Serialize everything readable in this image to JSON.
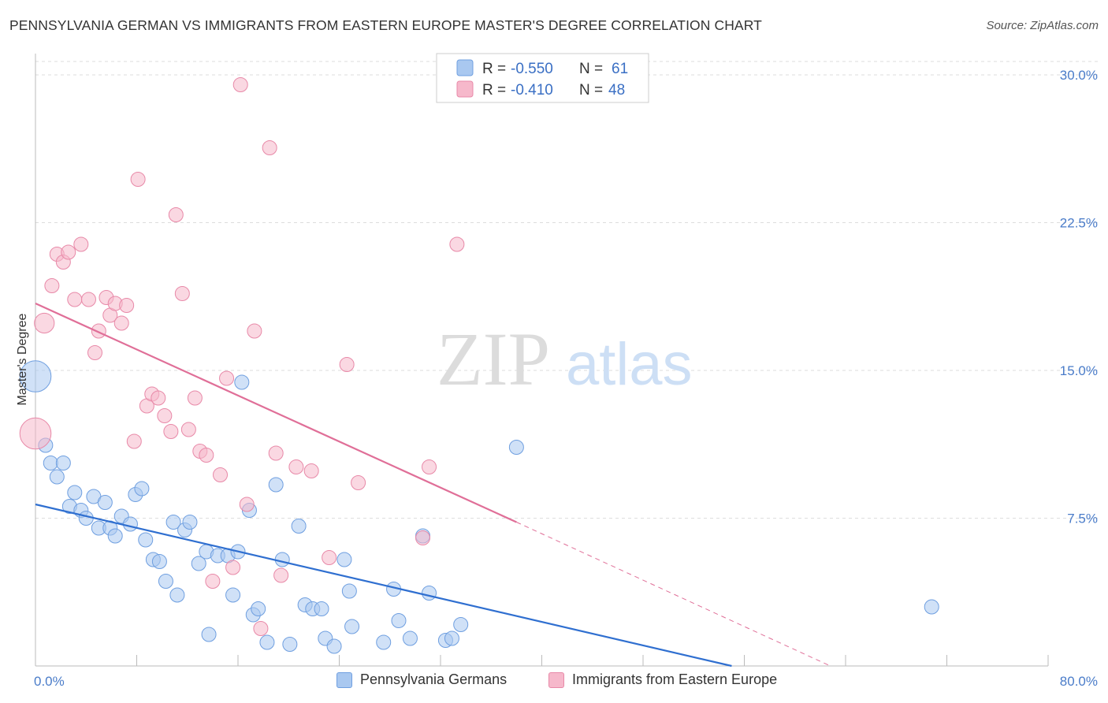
{
  "title": "PENNSYLVANIA GERMAN VS IMMIGRANTS FROM EASTERN EUROPE MASTER'S DEGREE CORRELATION CHART",
  "source": "Source: ZipAtlas.com",
  "watermark": {
    "zip": "ZIP",
    "atlas": "atlas"
  },
  "colors": {
    "blue_fill": "#a9c8f0",
    "blue_stroke": "#6f9fe0",
    "blue_line": "#2f6fd0",
    "pink_fill": "#f6b8cb",
    "pink_stroke": "#e889a8",
    "pink_line": "#e06f98",
    "grid": "#dddddd",
    "tick_label": "#4a7cc9"
  },
  "legend": {
    "r_label": "R =",
    "n_label": "N =",
    "rows": [
      {
        "r": "-0.550",
        "n": "61",
        "series": "blue"
      },
      {
        "r": "-0.410",
        "n": "48",
        "series": "pink"
      }
    ]
  },
  "bottom_legend": [
    "Pennsylvania Germans",
    "Immigrants from Eastern Europe"
  ],
  "chart_data": {
    "type": "scatter",
    "ylabel": "Master's Degree",
    "xlim": [
      0,
      80
    ],
    "ylim": [
      0,
      30
    ],
    "x_tick_labels": [
      "0.0%",
      "80.0%"
    ],
    "y_ticks": [
      7.5,
      15.0,
      22.5,
      30.0
    ],
    "y_tick_labels": [
      "7.5%",
      "15.0%",
      "22.5%",
      "30.0%"
    ],
    "grid": true,
    "series": [
      {
        "name": "Pennsylvania Germans",
        "color": "blue",
        "trend": {
          "x0": 0,
          "y0": 8.2,
          "x1": 55,
          "y1": 0.0,
          "dashed_to": null
        },
        "points": [
          [
            0.0,
            14.7,
            2.2
          ],
          [
            0.8,
            11.2,
            1
          ],
          [
            1.2,
            10.3,
            1
          ],
          [
            2.2,
            10.3,
            1
          ],
          [
            1.7,
            9.6,
            1
          ],
          [
            3.1,
            8.8,
            1
          ],
          [
            2.7,
            8.1,
            1
          ],
          [
            3.6,
            7.9,
            1
          ],
          [
            4.0,
            7.5,
            1
          ],
          [
            4.6,
            8.6,
            1
          ],
          [
            5.5,
            8.3,
            1
          ],
          [
            5.0,
            7.0,
            1
          ],
          [
            5.9,
            7.0,
            1
          ],
          [
            6.3,
            6.6,
            1
          ],
          [
            6.8,
            7.6,
            1
          ],
          [
            7.5,
            7.2,
            1
          ],
          [
            7.9,
            8.7,
            1
          ],
          [
            8.4,
            9.0,
            1
          ],
          [
            8.7,
            6.4,
            1
          ],
          [
            9.3,
            5.4,
            1
          ],
          [
            9.8,
            5.3,
            1
          ],
          [
            10.3,
            4.3,
            1
          ],
          [
            11.2,
            3.6,
            1
          ],
          [
            10.9,
            7.3,
            1
          ],
          [
            11.8,
            6.9,
            1
          ],
          [
            12.2,
            7.3,
            1
          ],
          [
            12.9,
            5.2,
            1
          ],
          [
            13.5,
            5.8,
            1
          ],
          [
            14.4,
            5.6,
            1
          ],
          [
            13.7,
            1.6,
            1
          ],
          [
            15.2,
            5.6,
            1
          ],
          [
            15.6,
            3.6,
            1
          ],
          [
            16.0,
            5.8,
            1
          ],
          [
            16.3,
            14.4,
            1
          ],
          [
            16.9,
            7.9,
            1
          ],
          [
            17.2,
            2.6,
            1
          ],
          [
            17.6,
            2.9,
            1
          ],
          [
            18.3,
            1.2,
            1
          ],
          [
            19.0,
            9.2,
            1
          ],
          [
            19.5,
            5.4,
            1
          ],
          [
            20.1,
            1.1,
            1
          ],
          [
            20.8,
            7.1,
            1
          ],
          [
            21.3,
            3.1,
            1
          ],
          [
            21.9,
            2.9,
            1
          ],
          [
            22.6,
            2.9,
            1
          ],
          [
            22.9,
            1.4,
            1
          ],
          [
            23.6,
            1.0,
            1
          ],
          [
            24.4,
            5.4,
            1
          ],
          [
            24.8,
            3.8,
            1
          ],
          [
            25.0,
            2.0,
            1
          ],
          [
            27.5,
            1.2,
            1
          ],
          [
            28.3,
            3.9,
            1
          ],
          [
            28.7,
            2.3,
            1
          ],
          [
            29.6,
            1.4,
            1
          ],
          [
            30.6,
            6.6,
            1
          ],
          [
            31.1,
            3.7,
            1
          ],
          [
            32.4,
            1.3,
            1
          ],
          [
            32.9,
            1.4,
            1
          ],
          [
            33.6,
            2.1,
            1
          ],
          [
            38.0,
            11.1,
            1
          ],
          [
            70.8,
            3.0,
            1
          ]
        ]
      },
      {
        "name": "Immigrants from Eastern Europe",
        "color": "pink",
        "trend": {
          "x0": 0,
          "y0": 18.4,
          "x1": 38,
          "y1": 7.3,
          "dashed_to": [
            62.8,
            0.0
          ]
        },
        "points": [
          [
            0.0,
            11.8,
            2.2
          ],
          [
            0.7,
            17.4,
            1.4
          ],
          [
            1.3,
            19.3,
            1
          ],
          [
            1.7,
            20.9,
            1
          ],
          [
            2.2,
            20.5,
            1
          ],
          [
            2.6,
            21.0,
            1
          ],
          [
            3.1,
            18.6,
            1
          ],
          [
            3.6,
            21.4,
            1
          ],
          [
            4.2,
            18.6,
            1
          ],
          [
            4.7,
            15.9,
            1
          ],
          [
            5.0,
            17.0,
            1
          ],
          [
            5.6,
            18.7,
            1
          ],
          [
            5.9,
            17.8,
            1
          ],
          [
            6.3,
            18.4,
            1
          ],
          [
            6.8,
            17.4,
            1
          ],
          [
            7.2,
            18.3,
            1
          ],
          [
            7.8,
            11.4,
            1
          ],
          [
            8.1,
            24.7,
            1
          ],
          [
            8.8,
            13.2,
            1
          ],
          [
            9.2,
            13.8,
            1
          ],
          [
            9.7,
            13.6,
            1
          ],
          [
            10.2,
            12.7,
            1
          ],
          [
            10.7,
            11.9,
            1
          ],
          [
            11.1,
            22.9,
            1
          ],
          [
            11.6,
            18.9,
            1
          ],
          [
            12.1,
            12.0,
            1
          ],
          [
            12.6,
            13.6,
            1
          ],
          [
            13.0,
            10.9,
            1
          ],
          [
            13.5,
            10.7,
            1
          ],
          [
            14.0,
            4.3,
            1
          ],
          [
            14.6,
            9.7,
            1
          ],
          [
            15.1,
            14.6,
            1
          ],
          [
            15.6,
            5.0,
            1
          ],
          [
            16.2,
            29.5,
            1
          ],
          [
            16.7,
            8.2,
            1
          ],
          [
            17.3,
            17.0,
            1
          ],
          [
            17.8,
            1.9,
            1
          ],
          [
            18.5,
            26.3,
            1
          ],
          [
            19.0,
            10.8,
            1
          ],
          [
            19.4,
            4.6,
            1
          ],
          [
            20.6,
            10.1,
            1
          ],
          [
            21.8,
            9.9,
            1
          ],
          [
            23.2,
            5.5,
            1
          ],
          [
            24.6,
            15.3,
            1
          ],
          [
            25.5,
            9.3,
            1
          ],
          [
            30.6,
            6.5,
            1
          ],
          [
            31.1,
            10.1,
            1
          ],
          [
            33.3,
            21.4,
            1
          ]
        ]
      }
    ]
  }
}
